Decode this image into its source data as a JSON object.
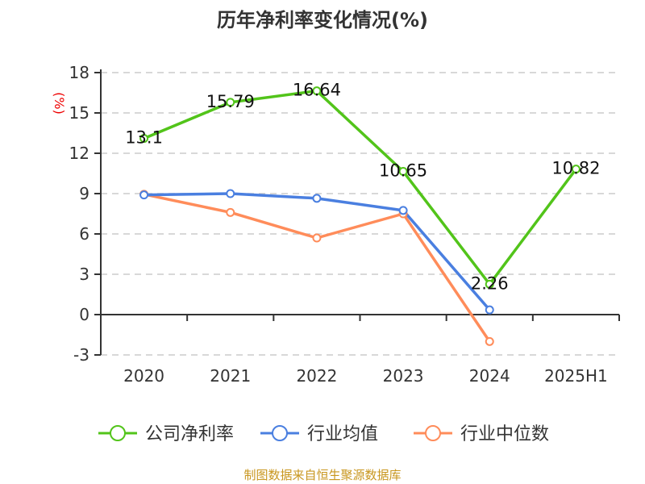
{
  "chart_data": {
    "type": "line",
    "title": "历年净利率变化情况(%)",
    "ylabel": "(%)",
    "categories": [
      "2020",
      "2021",
      "2022",
      "2023",
      "2024",
      "2025H1"
    ],
    "ylim": [
      -3,
      18
    ],
    "yticks": [
      -3,
      0,
      3,
      6,
      9,
      12,
      15,
      18
    ],
    "grid": true,
    "legend_position": "bottom",
    "series": [
      {
        "name": "公司净利率",
        "color": "#52c41a",
        "values": [
          13.1,
          15.79,
          16.64,
          10.65,
          2.26,
          10.82
        ],
        "labels": [
          "13.1",
          "15.79",
          "16.64",
          "10.65",
          "2.26",
          "10.82"
        ]
      },
      {
        "name": "行业均值",
        "color": "#4a7fe0",
        "values": [
          8.9,
          9.0,
          8.65,
          7.75,
          0.35,
          null
        ]
      },
      {
        "name": "行业中位数",
        "color": "#ff8c5a",
        "values": [
          8.95,
          7.6,
          5.7,
          7.5,
          -2.0,
          null
        ]
      }
    ]
  },
  "source": "制图数据来自恒生聚源数据库"
}
